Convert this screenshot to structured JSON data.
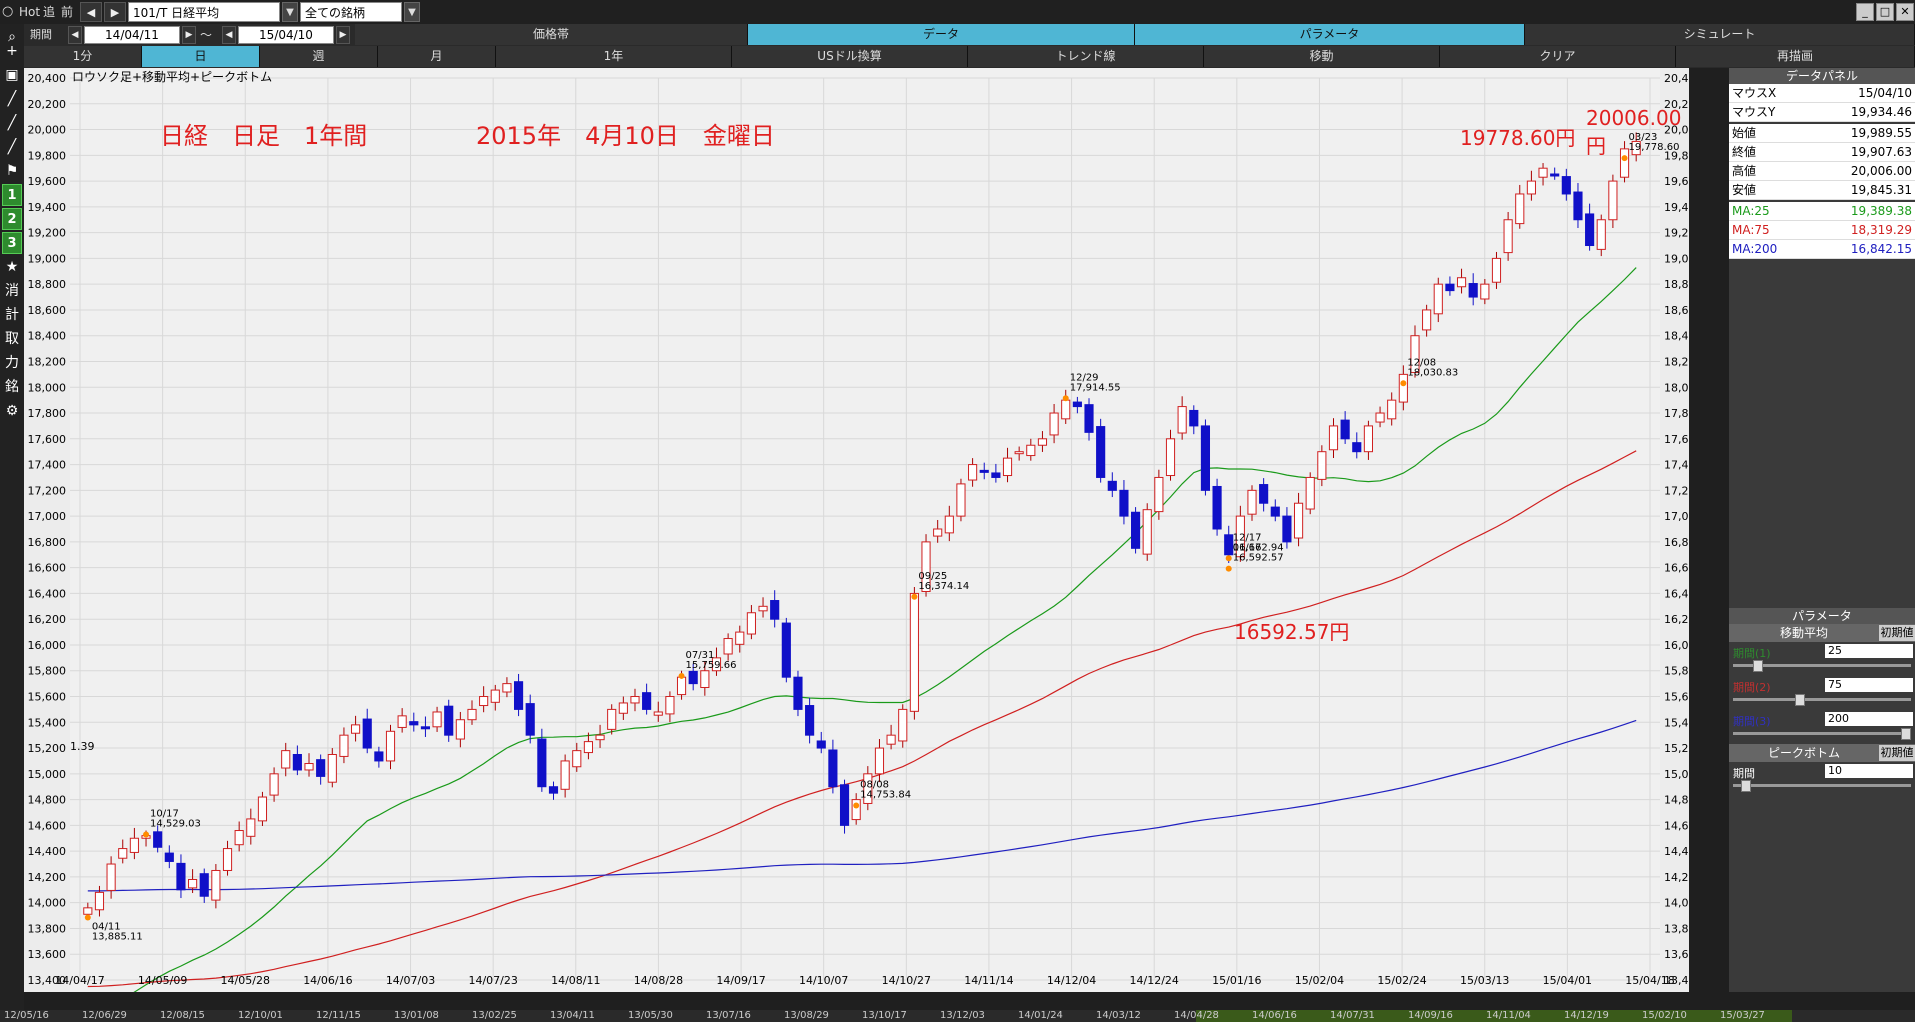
{
  "toolbar": {
    "hot": "Hot",
    "nav1": "追",
    "nav2": "前",
    "symbol": "101/T 日経平均",
    "category": "全ての銘柄"
  },
  "period_row": {
    "label": "期間",
    "from": "14/04/11",
    "to_sep": "～",
    "to": "15/04/10",
    "tabs": [
      "価格帯",
      "データ",
      "パラメータ",
      "シミュレート"
    ],
    "active_tabs": [
      "データ",
      "パラメータ"
    ]
  },
  "interval_row": {
    "tabs": [
      "1分",
      "日",
      "週",
      "月",
      "1年",
      "USドル換算",
      "トレンド線",
      "移動",
      "クリア",
      "再描画"
    ],
    "active": "日"
  },
  "sidebar": {
    "items": [
      "search-icon",
      "plus-icon",
      "camera-icon",
      "chart-line-icon",
      "chart-line-icon",
      "chart-line-icon",
      "flag-icon",
      "1",
      "2",
      "3",
      "star-icon",
      "消",
      "計",
      "取",
      "力",
      "銘",
      "gear-icon"
    ]
  },
  "chart": {
    "subtitle": "ロウソク足+移動平均+ピークボトム",
    "title_left": "日経　日足　1年間",
    "title_date": "2015年　4月10日　金曜日",
    "ann_high1": "19778.60円",
    "ann_high2": "20006.00円",
    "ann_low": "16592.57円",
    "left_edge_label": "1.39"
  },
  "chart_data": {
    "type": "candlestick",
    "yticks": [
      13400,
      13600,
      13800,
      14000,
      14200,
      14400,
      14600,
      14800,
      15000,
      15200,
      15400,
      15600,
      15800,
      16000,
      16200,
      16400,
      16600,
      16800,
      17000,
      17200,
      17400,
      17600,
      17800,
      18000,
      18200,
      18400,
      18600,
      18800,
      19000,
      19200,
      19400,
      19600,
      19800,
      20000,
      20200,
      20400
    ],
    "ylim": [
      13400,
      20400
    ],
    "xticks": [
      "14/04/17",
      "14/05/09",
      "14/05/28",
      "14/06/16",
      "14/07/03",
      "14/07/23",
      "14/08/11",
      "14/08/28",
      "14/09/17",
      "14/10/07",
      "14/10/27",
      "14/11/14",
      "14/12/04",
      "14/12/24",
      "15/01/16",
      "15/02/04",
      "15/02/24",
      "15/03/13",
      "15/04/01",
      "15/04/18"
    ],
    "series": [
      {
        "name": "MA:25",
        "color": "#1a9a1a"
      },
      {
        "name": "MA:75",
        "color": "#d02020"
      },
      {
        "name": "MA:200",
        "color": "#2020c0"
      }
    ],
    "closes": [
      13960,
      14080,
      14300,
      14420,
      14500,
      14520,
      14430,
      14320,
      14100,
      14180,
      14050,
      14250,
      14420,
      14560,
      14650,
      14820,
      15000,
      15180,
      15030,
      15080,
      14980,
      15150,
      15300,
      15380,
      15200,
      15100,
      15330,
      15450,
      15380,
      15350,
      15480,
      15300,
      15420,
      15500,
      15600,
      15650,
      15700,
      15500,
      15300,
      14900,
      14850,
      15100,
      15180,
      15250,
      15300,
      15500,
      15550,
      15600,
      15500,
      15480,
      15600,
      15750,
      15700,
      15800,
      15900,
      16050,
      16100,
      16250,
      16300,
      16200,
      15750,
      15500,
      15300,
      15200,
      14900,
      14600,
      14800,
      15000,
      15200,
      15300,
      15500,
      16400,
      16800,
      16900,
      17000,
      17250,
      17400,
      17350,
      17300,
      17450,
      17500,
      17550,
      17600,
      17800,
      17900,
      17850,
      17650,
      17300,
      17200,
      17000,
      16750,
      17050,
      17300,
      17600,
      17850,
      17700,
      17200,
      16900,
      16700,
      17000,
      17200,
      17100,
      17000,
      16800,
      17100,
      17300,
      17500,
      17700,
      17600,
      17500,
      17700,
      17800,
      17900,
      18100,
      18400,
      18600,
      18800,
      18750,
      18850,
      18700,
      18800,
      19000,
      19300,
      19500,
      19600,
      19700,
      19650,
      19500,
      19300,
      19100,
      19300,
      19600,
      19850,
      19907.63
    ],
    "peaks": [
      {
        "date": "04/11",
        "value": 13885.11
      },
      {
        "date": "07/31",
        "value": 15759.66
      },
      {
        "date": "08/08",
        "value": 14753.84
      },
      {
        "date": "09/25",
        "value": 16374.14
      },
      {
        "date": "10/17",
        "value": 14529.03
      },
      {
        "date": "12/08",
        "value": 18030.83
      },
      {
        "date": "12/17",
        "value": 16672.94
      },
      {
        "date": "12/29",
        "value": 17914.55
      },
      {
        "date": "01/16",
        "value": 16592.57
      },
      {
        "date": "03/23",
        "value": 19778.6
      }
    ]
  },
  "panel": {
    "title": "データパネル",
    "rows": [
      {
        "label": "マウスX",
        "value": "15/04/10"
      },
      {
        "label": "マウスY",
        "value": "19,934.46"
      },
      {
        "label": "始値",
        "value": "19,989.55"
      },
      {
        "label": "終値",
        "value": "19,907.63"
      },
      {
        "label": "高値",
        "value": "20,006.00"
      },
      {
        "label": "安値",
        "value": "19,845.31"
      }
    ],
    "ma_rows": [
      {
        "label": "MA:25",
        "value": "19,389.38",
        "color": "#1a9a1a"
      },
      {
        "label": "MA:75",
        "value": "18,319.29",
        "color": "#d02020"
      },
      {
        "label": "MA:200",
        "value": "16,842.15",
        "color": "#2020c0"
      }
    ],
    "param_title": "パラメータ",
    "ma_title": "移動平均",
    "init_label": "初期値",
    "params": [
      {
        "label": "期間(1)",
        "value": "25",
        "color": "#2e8b2e",
        "level": 0.12
      },
      {
        "label": "期間(2)",
        "value": "75",
        "color": "#c03030",
        "level": 0.37
      },
      {
        "label": "期間(3)",
        "value": "200",
        "color": "#3030c0",
        "level": 1.0
      }
    ],
    "peak_title": "ピークボトム",
    "peak_param": {
      "label": "期間",
      "value": "10",
      "level": 0.05
    }
  },
  "bottom_dates": [
    "12/05/16",
    "12/06/29",
    "12/08/15",
    "12/10/01",
    "12/11/15",
    "13/01/08",
    "13/02/25",
    "13/04/11",
    "13/05/30",
    "13/07/16",
    "13/08/29",
    "13/10/17",
    "13/12/03",
    "14/01/24",
    "14/03/12",
    "14/04/28",
    "14/06/16",
    "14/07/31",
    "14/09/16",
    "14/11/04",
    "14/12/19",
    "15/02/10",
    "15/03/27"
  ]
}
